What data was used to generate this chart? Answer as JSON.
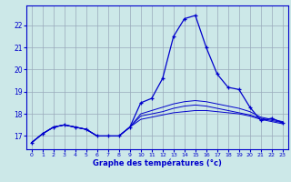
{
  "xlabel": "Graphe des températures (°c)",
  "bg_color": "#cce8e8",
  "line_color": "#0000cc",
  "grid_color": "#99aabb",
  "x_ticks": [
    0,
    1,
    2,
    3,
    4,
    5,
    6,
    7,
    8,
    9,
    10,
    11,
    12,
    13,
    14,
    15,
    16,
    17,
    18,
    19,
    20,
    21,
    22,
    23
  ],
  "y_ticks": [
    17,
    18,
    19,
    20,
    21,
    22
  ],
  "ylim": [
    16.4,
    22.9
  ],
  "xlim": [
    -0.5,
    23.5
  ],
  "temp_actual": [
    16.7,
    17.1,
    17.4,
    17.5,
    17.4,
    17.3,
    17.0,
    17.0,
    17.0,
    17.4,
    18.5,
    18.7,
    19.6,
    21.5,
    22.3,
    22.45,
    21.0,
    19.8,
    19.2,
    19.1,
    18.3,
    17.7,
    17.8,
    17.6
  ],
  "temp_line2": [
    16.7,
    17.1,
    17.4,
    17.5,
    17.4,
    17.3,
    17.0,
    17.0,
    17.0,
    17.4,
    17.75,
    17.85,
    17.95,
    18.05,
    18.1,
    18.15,
    18.15,
    18.1,
    18.05,
    18.0,
    17.9,
    17.75,
    17.65,
    17.55
  ],
  "temp_line3": [
    16.7,
    17.1,
    17.4,
    17.5,
    17.4,
    17.3,
    17.0,
    17.0,
    17.0,
    17.4,
    18.0,
    18.15,
    18.3,
    18.45,
    18.55,
    18.6,
    18.55,
    18.45,
    18.35,
    18.25,
    18.1,
    17.85,
    17.75,
    17.65
  ],
  "temp_line4": [
    16.7,
    17.1,
    17.4,
    17.5,
    17.4,
    17.3,
    17.0,
    17.0,
    17.0,
    17.4,
    17.9,
    18.0,
    18.1,
    18.25,
    18.35,
    18.4,
    18.35,
    18.25,
    18.15,
    18.05,
    17.95,
    17.8,
    17.7,
    17.6
  ]
}
